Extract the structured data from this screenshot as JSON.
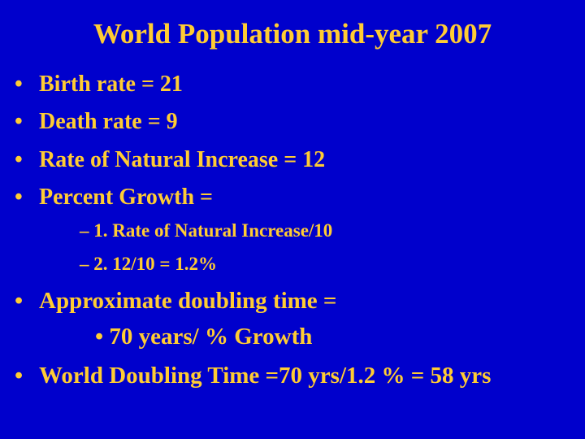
{
  "slide": {
    "title": "World Population mid-year 2007",
    "bullet_glyph": "•",
    "items": [
      "Birth rate = 21",
      "Death rate = 9",
      "Rate of Natural Increase = 12",
      "Percent Growth ="
    ],
    "subitems": [
      "– 1.  Rate of Natural Increase/10",
      "– 2.  12/10 = 1.2%"
    ],
    "doubling": {
      "heading": "Approximate doubling time =",
      "formula": "• 70 years/ % Growth",
      "world": "World Doubling Time =70 yrs/1.2 % = 58 yrs"
    },
    "colors": {
      "background": "#0000cc",
      "text": "#ffcc33"
    }
  }
}
